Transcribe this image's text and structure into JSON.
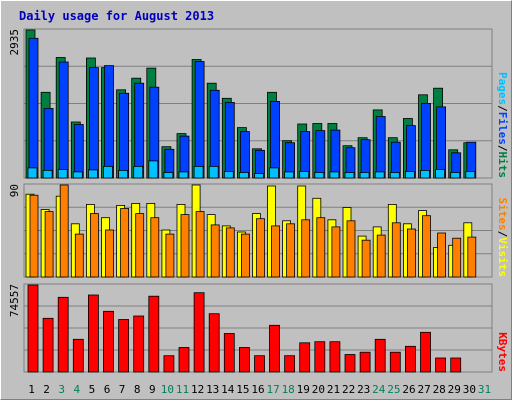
{
  "title": "Daily usage for August 2013",
  "colors": {
    "background": "#c0c0c0",
    "title": "#0000c0",
    "pages": "#00c0ff",
    "files": "#0040ff",
    "hits": "#008040",
    "visits": "#ffff00",
    "sites": "#ff8000",
    "kbytes": "#ff0000",
    "weekend_label": "#00805c",
    "weekday_label": "#000000"
  },
  "legend": {
    "hits_panel": [
      "Pages",
      "/",
      "Files",
      "/",
      "Hits"
    ],
    "visits_panel": [
      "Sites",
      "/",
      "Visits"
    ],
    "kbytes_panel": [
      "KBytes"
    ]
  },
  "chart_data": [
    {
      "type": "bar",
      "panel": "hits",
      "ymax_label": "2935",
      "ylim": [
        0,
        2935
      ],
      "categories": [
        "1",
        "2",
        "3",
        "4",
        "5",
        "6",
        "7",
        "8",
        "9",
        "10",
        "11",
        "12",
        "13",
        "14",
        "15",
        "16",
        "17",
        "18",
        "19",
        "20",
        "21",
        "22",
        "23",
        "24",
        "25",
        "26",
        "27",
        "28",
        "29",
        "30",
        "31"
      ],
      "weekend_days": [
        "3",
        "4",
        "10",
        "11",
        "17",
        "18",
        "24",
        "25",
        "31"
      ],
      "series": [
        {
          "name": "Hits",
          "values": [
            2935,
            1700,
            2390,
            1110,
            2380,
            2190,
            1750,
            1980,
            2180,
            620,
            880,
            2350,
            1880,
            1580,
            1000,
            580,
            1700,
            740,
            1070,
            1080,
            1080,
            640,
            800,
            1350,
            800,
            1180,
            1650,
            1780,
            560,
            700,
            0
          ]
        },
        {
          "name": "Files",
          "values": [
            2770,
            1380,
            2300,
            1060,
            2190,
            2230,
            1680,
            1880,
            1800,
            570,
            830,
            2310,
            1740,
            1500,
            920,
            550,
            1520,
            700,
            920,
            940,
            950,
            600,
            760,
            1220,
            710,
            1040,
            1480,
            1410,
            500,
            710,
            0
          ]
        },
        {
          "name": "Pages",
          "values": [
            200,
            150,
            170,
            120,
            160,
            230,
            150,
            230,
            340,
            110,
            120,
            230,
            230,
            130,
            110,
            90,
            200,
            120,
            130,
            110,
            120,
            110,
            110,
            120,
            110,
            130,
            150,
            170,
            110,
            130,
            0
          ]
        }
      ]
    },
    {
      "type": "bar",
      "panel": "visits",
      "ymax_label": "90",
      "ylim": [
        0,
        90
      ],
      "categories": [
        "1",
        "2",
        "3",
        "4",
        "5",
        "6",
        "7",
        "8",
        "9",
        "10",
        "11",
        "12",
        "13",
        "14",
        "15",
        "16",
        "17",
        "18",
        "19",
        "20",
        "21",
        "22",
        "23",
        "24",
        "25",
        "26",
        "27",
        "28",
        "29",
        "30",
        "31"
      ],
      "series": [
        {
          "name": "Visits",
          "values": [
            81,
            66,
            79,
            52,
            71,
            58,
            70,
            72,
            72,
            46,
            71,
            90,
            61,
            50,
            44,
            62,
            89,
            55,
            89,
            77,
            56,
            68,
            40,
            49,
            71,
            52,
            65,
            29,
            31,
            53,
            0
          ]
        },
        {
          "name": "Sites",
          "values": [
            80,
            64,
            90,
            42,
            62,
            46,
            67,
            62,
            58,
            42,
            61,
            64,
            51,
            48,
            42,
            57,
            50,
            52,
            56,
            58,
            49,
            55,
            36,
            41,
            53,
            47,
            60,
            43,
            38,
            39,
            0
          ]
        }
      ]
    },
    {
      "type": "bar",
      "panel": "kbytes",
      "ymax_label": "74557",
      "ylim": [
        0,
        74557
      ],
      "categories": [
        "1",
        "2",
        "3",
        "4",
        "5",
        "6",
        "7",
        "8",
        "9",
        "10",
        "11",
        "12",
        "13",
        "14",
        "15",
        "16",
        "17",
        "18",
        "19",
        "20",
        "21",
        "22",
        "23",
        "24",
        "25",
        "26",
        "27",
        "28",
        "29",
        "30",
        "31"
      ],
      "series": [
        {
          "name": "KBytes",
          "values": [
            74557,
            46000,
            64000,
            28000,
            66000,
            52000,
            45000,
            48000,
            65000,
            14000,
            21000,
            68000,
            50000,
            33000,
            21000,
            14000,
            40000,
            14000,
            25000,
            26000,
            26000,
            15000,
            17000,
            28000,
            17000,
            22000,
            34000,
            12000,
            12000,
            0,
            0
          ]
        }
      ]
    }
  ]
}
